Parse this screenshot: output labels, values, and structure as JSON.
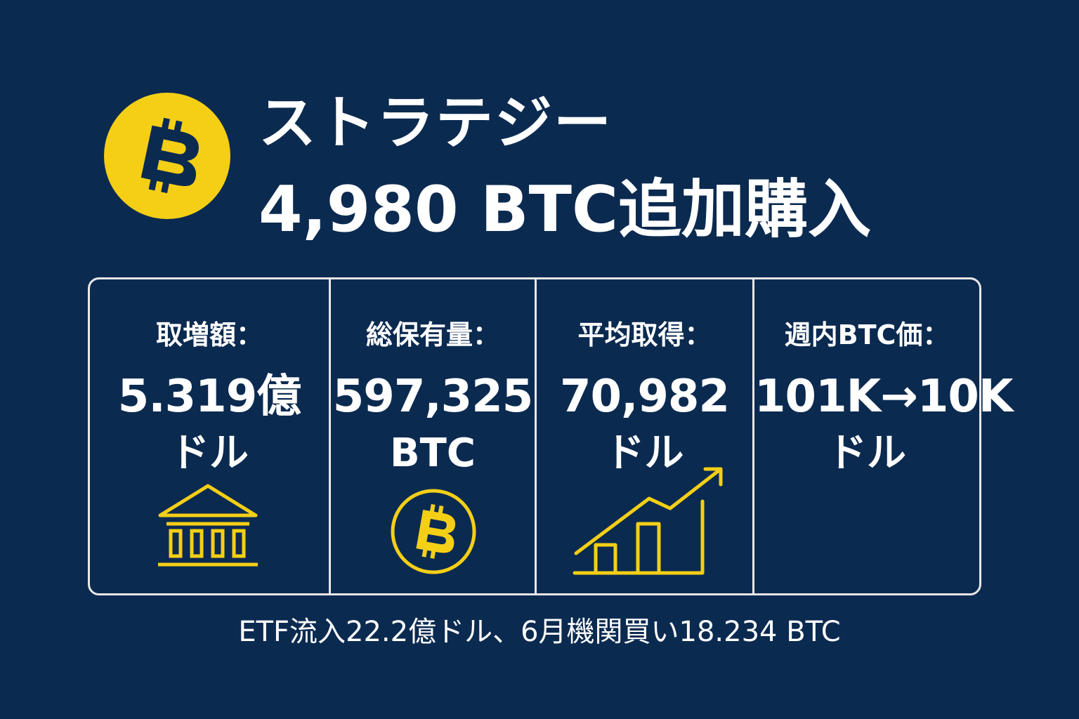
{
  "header": {
    "title_line1": "ストラテジー",
    "title_line2": "4,980 BTC追加購入",
    "logo_icon": "bitcoin-logo-icon",
    "logo_color": "#f4cf16"
  },
  "stats": [
    {
      "label": "取増額：",
      "value": "5.319億",
      "unit": "ドル",
      "icon": "bank-icon"
    },
    {
      "label": "総保有量：",
      "value": "597,325",
      "unit": "BTC",
      "icon": "bitcoin-circle-icon"
    },
    {
      "label": "平均取得：",
      "value": "70,982",
      "unit": "ドル",
      "icon": "growth-chart-icon"
    },
    {
      "label": "週内BTC価：",
      "value": "101K→10K",
      "unit": "ドル",
      "icon": ""
    }
  ],
  "footer": {
    "text": "ETF流入22.2億ドル、6月機関買い18.234 BTC"
  },
  "colors": {
    "background": "#0b2a50",
    "accent": "#f4cf16",
    "text": "#ffffff",
    "border": "#e8e8e8"
  }
}
